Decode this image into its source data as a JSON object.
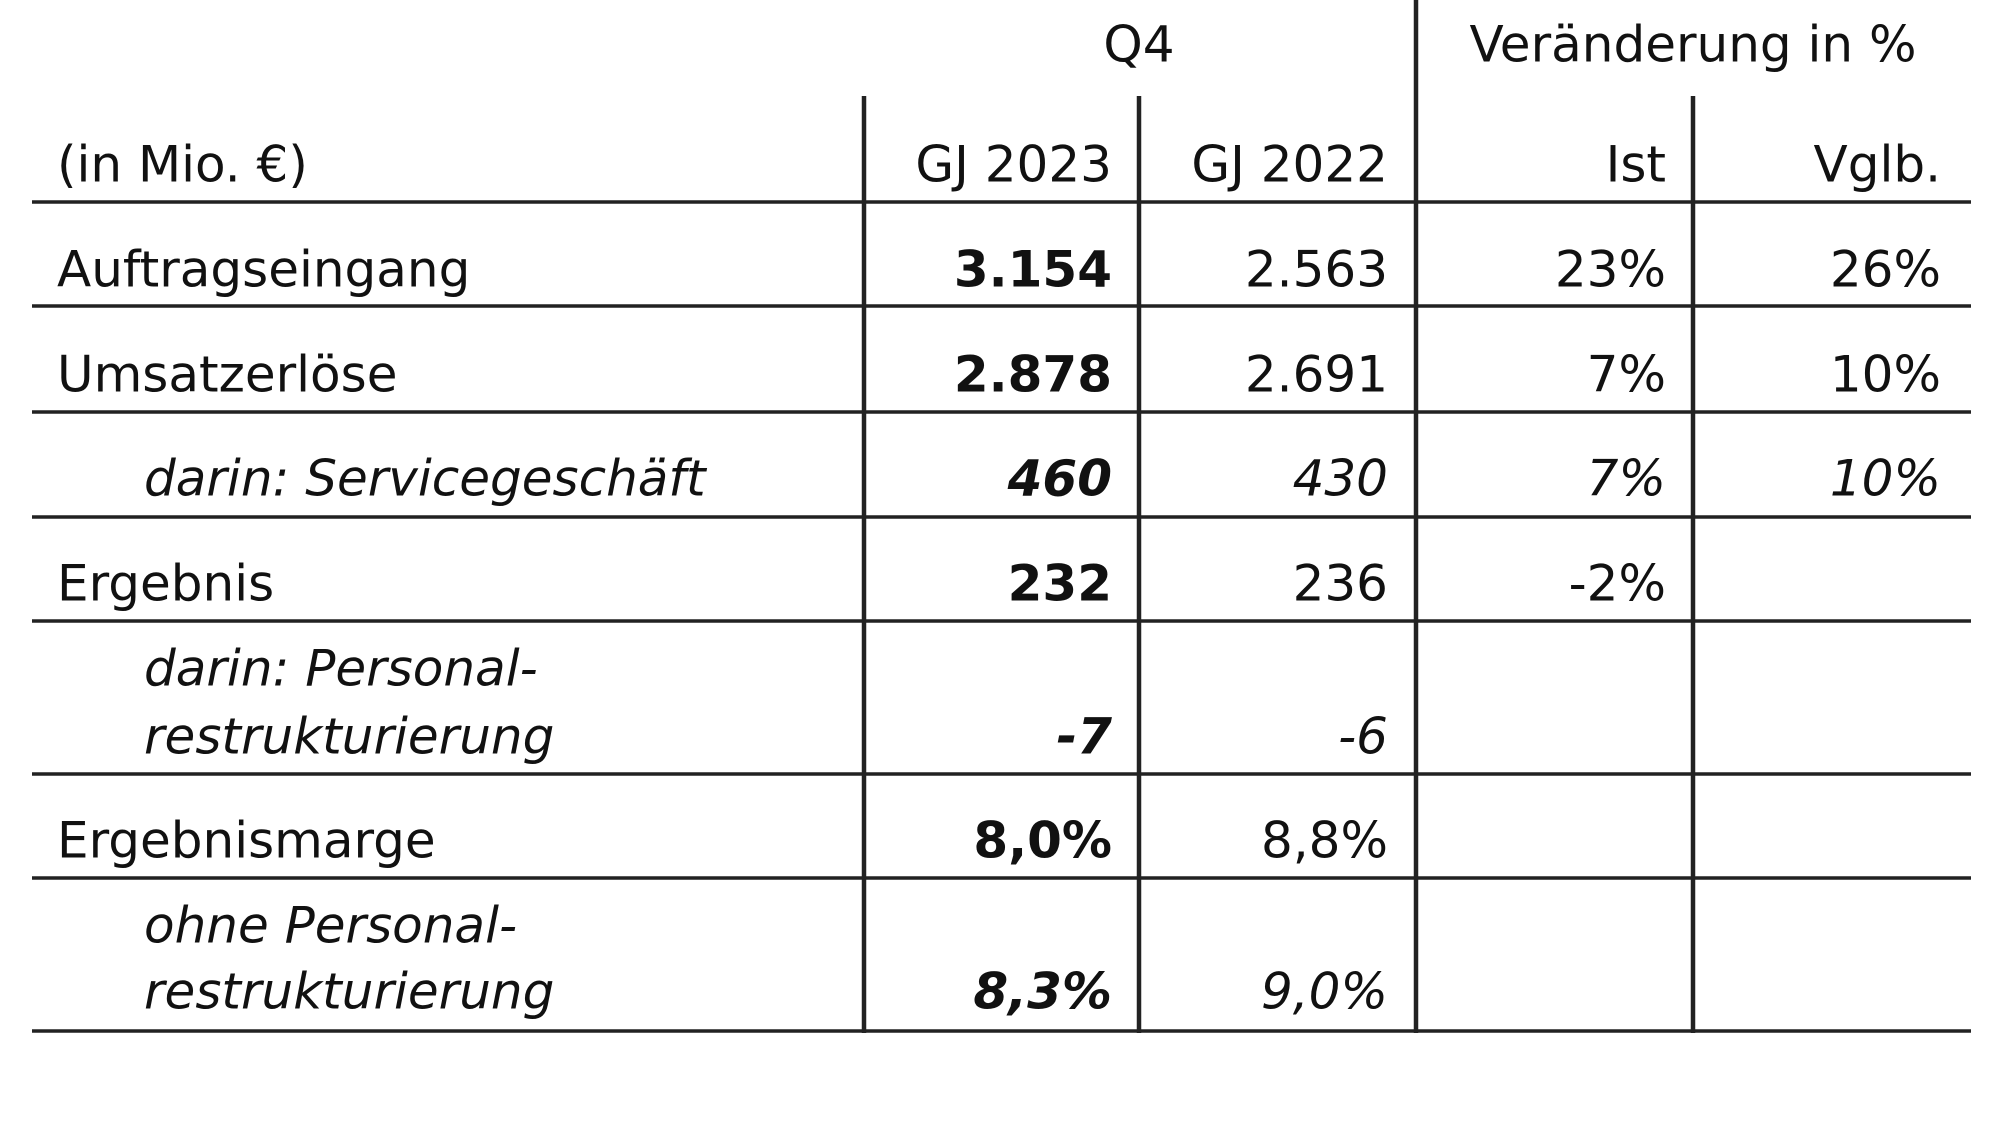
{
  "header": {
    "group_q4": "Q4",
    "group_change": "Veränderung in %",
    "unit": "(in Mio. €)",
    "columns": [
      "GJ 2023",
      "GJ 2022",
      "Ist",
      "Vglb."
    ]
  },
  "table": {
    "rows": [
      {
        "label": [
          "Auftragseingang"
        ],
        "cells": [
          "3.154",
          "2.563",
          "23%",
          "26%"
        ]
      },
      {
        "label": [
          "Umsatzerlöse"
        ],
        "cells": [
          "2.878",
          "2.691",
          "7%",
          "10%"
        ]
      },
      {
        "label": [
          "darin: Servicegeschäft"
        ],
        "cells": [
          "460",
          "430",
          "7%",
          "10%"
        ]
      },
      {
        "label": [
          "Ergebnis"
        ],
        "cells": [
          "232",
          "236",
          "-2%",
          null
        ]
      },
      {
        "label": [
          "darin: Personal-",
          "restrukturierung"
        ],
        "cells": [
          "-7",
          "-6",
          null,
          null
        ]
      },
      {
        "label": [
          "Ergebnismarge"
        ],
        "cells": [
          "8,0%",
          "8,8%",
          null,
          null
        ]
      },
      {
        "label": [
          "ohne Personal-",
          "restrukturierung"
        ],
        "cells": [
          "8,3%",
          "9,0%",
          null,
          null
        ]
      }
    ]
  }
}
